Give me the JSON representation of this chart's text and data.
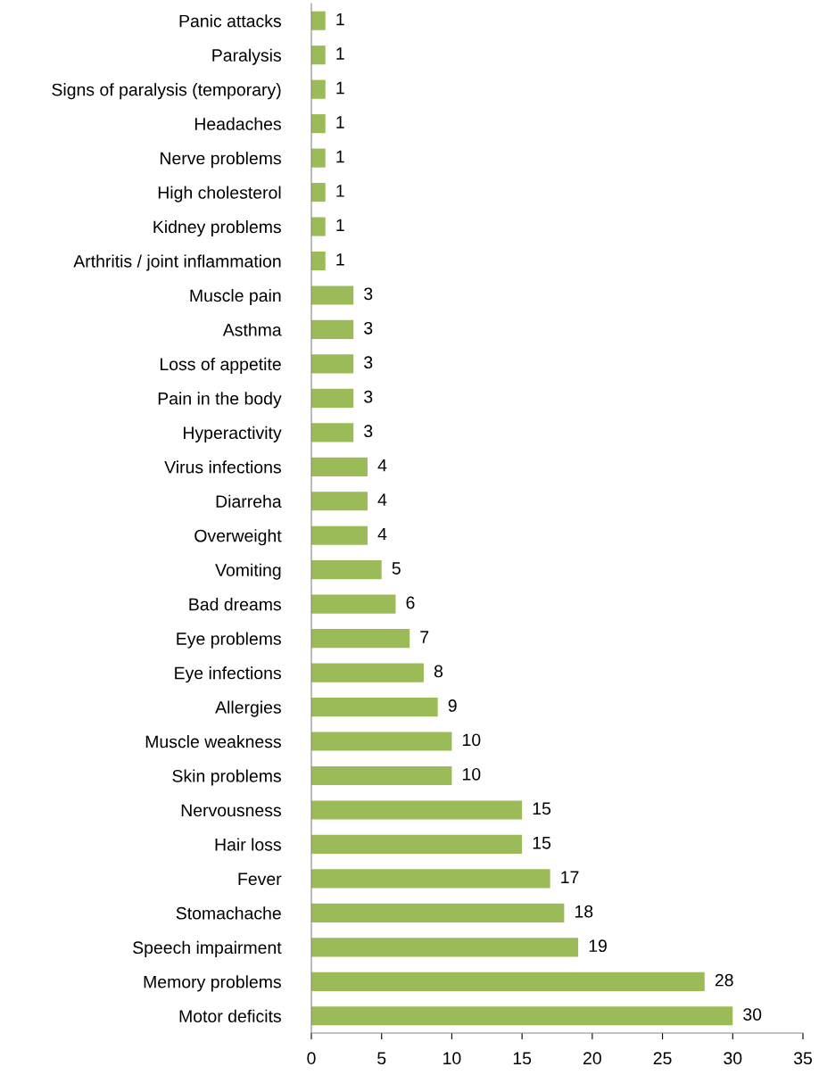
{
  "chart_data": {
    "type": "bar",
    "orientation": "horizontal",
    "categories": [
      "Panic attacks",
      "Paralysis",
      "Signs of paralysis (temporary)",
      "Headaches",
      "Nerve problems",
      "High cholesterol",
      "Kidney problems",
      "Arthritis / joint inflammation",
      "Muscle pain",
      "Asthma",
      "Loss of appetite",
      "Pain in the body",
      "Hyperactivity",
      "Virus infections",
      "Diarreha",
      "Overweight",
      "Vomiting",
      "Bad dreams",
      "Eye problems",
      "Eye infections",
      "Allergies",
      "Muscle weakness",
      "Skin problems",
      "Nervousness",
      "Hair loss",
      "Fever",
      "Stomachache",
      "Speech impairment",
      "Memory problems",
      "Motor deficits"
    ],
    "values": [
      1,
      1,
      1,
      1,
      1,
      1,
      1,
      1,
      3,
      3,
      3,
      3,
      3,
      4,
      4,
      4,
      5,
      6,
      7,
      8,
      9,
      10,
      10,
      15,
      15,
      17,
      18,
      19,
      28,
      30
    ],
    "color": "#9bbb59",
    "xlim": [
      0,
      35
    ],
    "xticks": [
      0,
      5,
      10,
      15,
      20,
      25,
      30,
      35
    ],
    "data_labels": true,
    "grid": false,
    "legend": false
  }
}
